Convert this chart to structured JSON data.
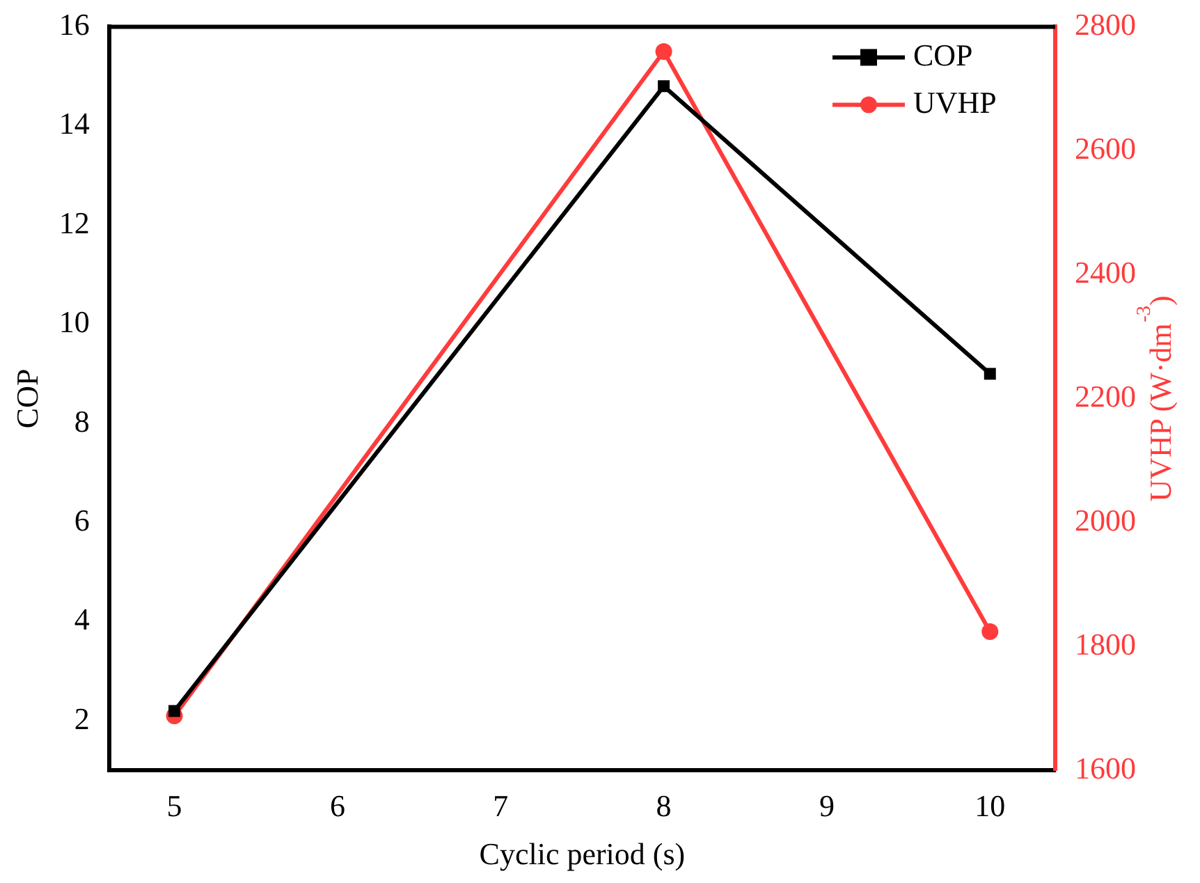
{
  "chart_data": {
    "type": "line",
    "xlabel": "Cyclic period (s)",
    "ylabel": "COP",
    "y2label": "UVHP (W·dm$^{-3}$)",
    "x": [
      5,
      8,
      10
    ],
    "series": [
      {
        "name": "COP",
        "color": "#000000",
        "values": [
          2.2,
          14.8,
          9.0
        ],
        "marker": "square"
      },
      {
        "name": "UVHP",
        "color": "#ff3b3b",
        "values": [
          1688,
          2760,
          1824
        ],
        "marker": "circle",
        "axis": "y2"
      }
    ],
    "xlim": [
      4.6,
      10.4
    ],
    "xticks": [
      5,
      6,
      7,
      8,
      9,
      10
    ],
    "ylim": [
      1,
      16
    ],
    "yticks": [
      2,
      4,
      6,
      8,
      10,
      12,
      14,
      16
    ],
    "y2lim": [
      1600,
      2800
    ],
    "y2ticks": [
      1600,
      1800,
      2000,
      2200,
      2400,
      2600,
      2800
    ],
    "grid": false,
    "legend": "top right",
    "line_style": "solid"
  }
}
